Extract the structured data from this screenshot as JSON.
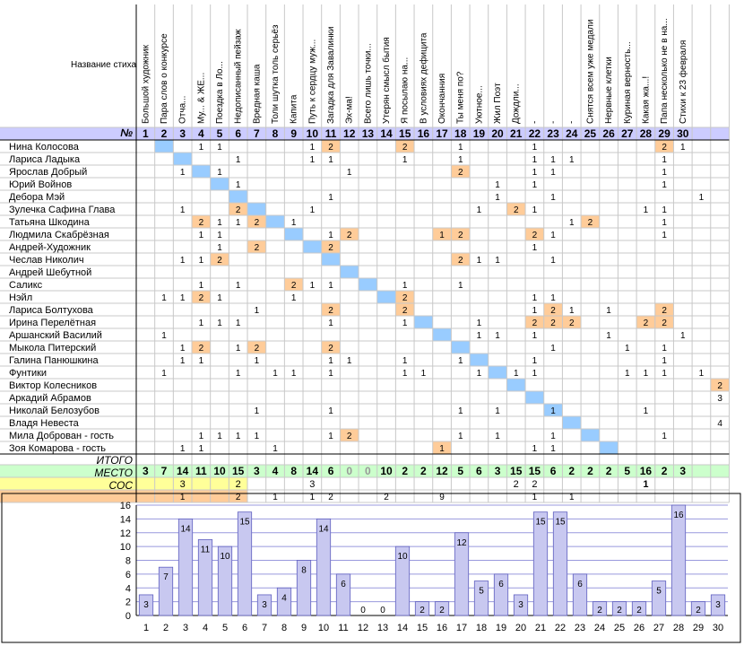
{
  "corner_label": "Название стиха",
  "num_label": "№",
  "poems": [
    "Большой художник",
    "Пара слов о конкурсе",
    "Отча...",
    "Му... & ЖЕ...",
    "Поездка в Ло...",
    "Недописанный пейзаж",
    "Вредная каша",
    "Толи шутка толь серьёз",
    "Капита",
    "Путь к сердцу муж...",
    "Загадка для Завалинки",
    "Эх-ма!",
    "Всего лишь точки...",
    "Утерян смысл бытия",
    "Я посылаю на...",
    "В условиях дефицита",
    "Окончанния",
    "Ты меня по?",
    "Уютное...",
    "Жил Поэт",
    "Дождли...",
    "-",
    "-",
    "-",
    "Снятся всем уже медали",
    "Нервные клетки",
    "Куриная верность...",
    "Какая жа...!",
    "Папа несколько не в на...",
    "Стихи к 23 февраля"
  ],
  "col_numbers": [
    "1",
    "2",
    "3",
    "4",
    "5",
    "6",
    "7",
    "8",
    "9",
    "10",
    "11",
    "12",
    "13",
    "14",
    "15",
    "16",
    "17",
    "18",
    "19",
    "20",
    "21",
    "22",
    "23",
    "24",
    "25",
    "26",
    "27",
    "28",
    "29",
    "30"
  ],
  "participants": [
    {
      "name": "Нина Колосова",
      "cells": {
        "4": "1",
        "5": "1",
        "10": "1",
        "11": "2",
        "15": "2",
        "18": "1",
        "22": "1",
        "29": "2",
        "30": "1"
      }
    },
    {
      "name": "Лариса Ладыка",
      "cells": {
        "6": "1",
        "10": "1",
        "11": "1",
        "15": "1",
        "18": "1",
        "22": "1",
        "23": "1",
        "24": "1",
        "29": "1"
      }
    },
    {
      "name": "Ярослав Добрый",
      "cells": {
        "3": "1",
        "5": "1",
        "12": "1",
        "18": "2",
        "22": "1",
        "23": "1",
        "29": "1"
      }
    },
    {
      "name": "Юрий Войнов",
      "cells": {
        "6": "1",
        "20": "1",
        "22": "1",
        "29": "1"
      }
    },
    {
      "name": "Дебора Мэй",
      "cells": {
        "11": "1",
        "20": "1",
        "23": "1",
        "31": "1"
      }
    },
    {
      "name": "Зулечка Сафина Глава",
      "cells": {
        "3": "1",
        "6": "2",
        "10": "1",
        "19": "1",
        "21": "2",
        "22": "1",
        "28": "1",
        "29": "1"
      }
    },
    {
      "name": "Татьяна Шкодина",
      "cells": {
        "4": "2",
        "5": "1",
        "6": "1",
        "7": "2",
        "9": "1",
        "24": "1",
        "25": "2",
        "29": "1"
      }
    },
    {
      "name": "Людмила Скабрёзная",
      "cells": {
        "4": "1",
        "5": "1",
        "11": "1",
        "12": "2",
        "17": "1",
        "18": "2",
        "22": "2",
        "23": "1",
        "29": "1"
      }
    },
    {
      "name": "Андрей-Художник",
      "cells": {
        "5": "1",
        "7": "2",
        "11": "2",
        "22": "1"
      }
    },
    {
      "name": "Чеслав Николич",
      "cells": {
        "3": "1",
        "4": "1",
        "5": "2",
        "18": "2",
        "19": "1",
        "20": "1",
        "23": "1"
      }
    },
    {
      "name": "Андрей Шебутной",
      "cells": {}
    },
    {
      "name": "Саликс",
      "cells": {
        "4": "1",
        "6": "1",
        "9": "2",
        "10": "1",
        "11": "1",
        "15": "1",
        "18": "1"
      }
    },
    {
      "name": "Нэйл",
      "cells": {
        "2": "1",
        "3": "1",
        "4": "2",
        "5": "1",
        "9": "1",
        "15": "2",
        "22": "1",
        "23": "1"
      }
    },
    {
      "name": "Лариса Болтухова",
      "cells": {
        "7": "1",
        "11": "2",
        "15": "2",
        "22": "1",
        "23": "2",
        "24": "1",
        "26": "1",
        "29": "2"
      }
    },
    {
      "name": "Ирина Перелётная",
      "cells": {
        "4": "1",
        "5": "1",
        "6": "1",
        "11": "1",
        "15": "1",
        "19": "1",
        "22": "2",
        "23": "2",
        "24": "2",
        "28": "2",
        "29": "2"
      }
    },
    {
      "name": "Аршанский Василий",
      "cells": {
        "2": "1",
        "19": "1",
        "20": "1",
        "22": "1",
        "26": "1",
        "30": "1"
      }
    },
    {
      "name": "Мыкола Питерский",
      "cells": {
        "3": "1",
        "4": "2",
        "6": "1",
        "7": "2",
        "11": "2",
        "23": "1",
        "27": "1",
        "29": "1"
      }
    },
    {
      "name": "Галина Панюшкина",
      "cells": {
        "3": "1",
        "4": "1",
        "7": "1",
        "11": "1",
        "12": "1",
        "15": "1",
        "18": "1",
        "22": "1",
        "29": "1"
      }
    },
    {
      "name": "Фунтики",
      "cells": {
        "2": "1",
        "6": "1",
        "8": "1",
        "9": "1",
        "11": "1",
        "15": "1",
        "16": "1",
        "19": "1",
        "21": "1",
        "22": "1",
        "27": "1",
        "28": "1",
        "29": "1",
        "31": "1"
      }
    },
    {
      "name": "Виктор Колесников",
      "cells": {
        "32": "2"
      }
    },
    {
      "name": "Аркадий Абрамов",
      "cells": {
        "32": "3"
      }
    },
    {
      "name": "Николай Белозубов",
      "cells": {
        "7": "1",
        "11": "1",
        "18": "1",
        "20": "1",
        "23": "1",
        "28": "1"
      }
    },
    {
      "name": "Владя Невеста",
      "cells": {
        "32": "4"
      }
    },
    {
      "name": "Мила Доброван - гость",
      "cells": {
        "4": "1",
        "5": "1",
        "6": "1",
        "7": "1",
        "11": "1",
        "12": "2",
        "18": "1",
        "20": "1",
        "23": "1",
        "29": "1"
      }
    },
    {
      "name": "Зоя Комарова - гость",
      "cells": {
        "3": "1",
        "4": "1",
        "8": "1",
        "17": "1",
        "22": "1",
        "23": "1"
      }
    }
  ],
  "itogo_label": "ИТОГО",
  "mesto_label": "МЕСТО",
  "cos_label": "СОС",
  "totals": [
    "3",
    "7",
    "14",
    "11",
    "10",
    "15",
    "3",
    "4",
    "8",
    "14",
    "6",
    "0",
    "0",
    "10",
    "2",
    "2",
    "12",
    "5",
    "6",
    "3",
    "15",
    "15",
    "6",
    "2",
    "2",
    "2",
    "5",
    "16",
    "2",
    "3"
  ],
  "mesto": {
    "3": "3",
    "6": "2",
    "10": "3",
    "21": "2",
    "22": "2",
    "28": "1"
  },
  "cos": {
    "3": "1",
    "6": "2",
    "8": "1",
    "10": "1",
    "11": "2",
    "14": "2",
    "17": "9",
    "22": "1",
    "24": "1"
  },
  "chart_data": {
    "type": "bar",
    "categories": [
      "1",
      "2",
      "3",
      "4",
      "5",
      "6",
      "7",
      "8",
      "9",
      "10",
      "11",
      "12",
      "13",
      "14",
      "15",
      "16",
      "17",
      "18",
      "19",
      "20",
      "21",
      "22",
      "23",
      "24",
      "25",
      "26",
      "27",
      "28",
      "29",
      "30"
    ],
    "values": [
      3,
      7,
      14,
      11,
      10,
      15,
      3,
      4,
      8,
      14,
      6,
      0,
      0,
      10,
      2,
      2,
      12,
      5,
      6,
      3,
      15,
      15,
      6,
      2,
      2,
      2,
      5,
      16,
      2,
      3
    ],
    "ylim": [
      0,
      16
    ],
    "yticks": [
      "0",
      "2",
      "4",
      "6",
      "8",
      "10",
      "12",
      "14",
      "16"
    ],
    "grid": true,
    "bar_color": "#c8c8f0",
    "bar_edge": "#6060c0"
  },
  "colors": {
    "blue_cell": "#99ccff",
    "orange_cell": "#ffcc99",
    "green_row": "#ccffcc",
    "yellow_row": "#ffff99",
    "orange_row": "#ffcc99",
    "header_num": "#ccccff"
  }
}
